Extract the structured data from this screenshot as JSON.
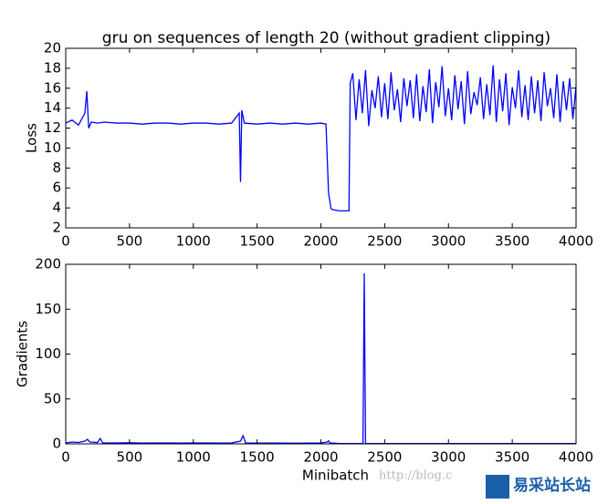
{
  "chart_data": [
    {
      "type": "line",
      "title": "gru on sequences of length 20 (without gradient clipping)",
      "ylabel": "Loss",
      "x": [
        0,
        50,
        100,
        150,
        165,
        180,
        200,
        250,
        300,
        400,
        500,
        600,
        700,
        800,
        900,
        1000,
        1100,
        1200,
        1300,
        1360,
        1370,
        1380,
        1400,
        1500,
        1600,
        1700,
        1800,
        1900,
        2000,
        2040,
        2060,
        2080,
        2100,
        2150,
        2200,
        2220,
        2230,
        2250,
        2275,
        2300,
        2325,
        2350,
        2375,
        2400,
        2425,
        2450,
        2475,
        2500,
        2525,
        2550,
        2575,
        2600,
        2625,
        2650,
        2675,
        2700,
        2725,
        2750,
        2775,
        2800,
        2825,
        2850,
        2875,
        2900,
        2925,
        2950,
        2975,
        3000,
        3025,
        3050,
        3075,
        3100,
        3125,
        3150,
        3175,
        3200,
        3225,
        3250,
        3275,
        3300,
        3325,
        3350,
        3375,
        3400,
        3425,
        3450,
        3475,
        3500,
        3525,
        3550,
        3575,
        3600,
        3625,
        3650,
        3675,
        3700,
        3725,
        3750,
        3775,
        3800,
        3825,
        3850,
        3875,
        3900,
        3925,
        3950,
        3975,
        4000
      ],
      "values": [
        12.5,
        12.8,
        12.3,
        13.5,
        15.7,
        12.0,
        12.6,
        12.5,
        12.6,
        12.5,
        12.5,
        12.4,
        12.5,
        12.5,
        12.4,
        12.5,
        12.5,
        12.4,
        12.5,
        13.5,
        6.6,
        13.8,
        12.5,
        12.4,
        12.5,
        12.4,
        12.5,
        12.4,
        12.5,
        12.4,
        5.5,
        3.9,
        3.8,
        3.7,
        3.7,
        3.7,
        16.5,
        17.5,
        12.8,
        16.9,
        13.5,
        17.8,
        12.2,
        15.8,
        14.0,
        17.2,
        13.1,
        16.5,
        12.9,
        17.6,
        13.8,
        15.9,
        12.6,
        17.0,
        14.2,
        16.8,
        13.0,
        17.4,
        12.7,
        16.2,
        13.6,
        17.9,
        12.5,
        16.6,
        14.1,
        18.2,
        13.2,
        16.0,
        12.8,
        17.3,
        13.9,
        16.7,
        12.4,
        17.7,
        13.4,
        15.6,
        14.3,
        17.1,
        12.9,
        16.4,
        13.3,
        18.3,
        12.6,
        16.9,
        13.7,
        17.5,
        12.3,
        16.1,
        14.0,
        17.8,
        13.1,
        16.3,
        12.8,
        17.2,
        13.5,
        16.8,
        12.7,
        17.6,
        14.2,
        16.0,
        13.0,
        17.4,
        12.6,
        16.7,
        13.8,
        17.0,
        12.9,
        16.2
      ],
      "color": "#0000ff",
      "xlim": [
        0,
        4000
      ],
      "xticks": [
        0,
        500,
        1000,
        1500,
        2000,
        2500,
        3000,
        3500,
        4000
      ],
      "ylim": [
        2,
        20
      ],
      "yticks": [
        2,
        4,
        6,
        8,
        10,
        12,
        14,
        16,
        18,
        20
      ]
    },
    {
      "type": "line",
      "ylabel": "Gradients",
      "xlabel": "Minibatch",
      "x": [
        0,
        50,
        100,
        150,
        170,
        190,
        250,
        270,
        290,
        400,
        500,
        600,
        700,
        800,
        900,
        1000,
        1100,
        1200,
        1300,
        1370,
        1390,
        1410,
        1500,
        1600,
        1700,
        1800,
        1900,
        2000,
        2050,
        2060,
        2070,
        2150,
        2300,
        2330,
        2340,
        2350,
        2500,
        2700,
        3000,
        3500,
        4000
      ],
      "values": [
        1,
        2,
        1.5,
        3,
        5,
        2,
        1.5,
        6,
        1,
        1,
        1.2,
        0.8,
        1,
        1,
        0.8,
        1,
        1,
        0.9,
        1,
        3,
        9,
        1,
        0.8,
        0.9,
        0.8,
        0.7,
        0.8,
        1,
        2,
        3.5,
        1,
        0.3,
        0.3,
        0.5,
        190,
        0.5,
        0.4,
        0.4,
        0.4,
        0.4,
        0.4
      ],
      "color": "#0000ff",
      "xlim": [
        0,
        4000
      ],
      "xticks": [
        0,
        500,
        1000,
        1500,
        2000,
        2500,
        3000,
        3500,
        4000
      ],
      "ylim": [
        0,
        200
      ],
      "yticks": [
        0,
        50,
        100,
        150,
        200
      ]
    }
  ],
  "watermark": {
    "url": "http://blog.c",
    "logo": "易采站长站"
  }
}
